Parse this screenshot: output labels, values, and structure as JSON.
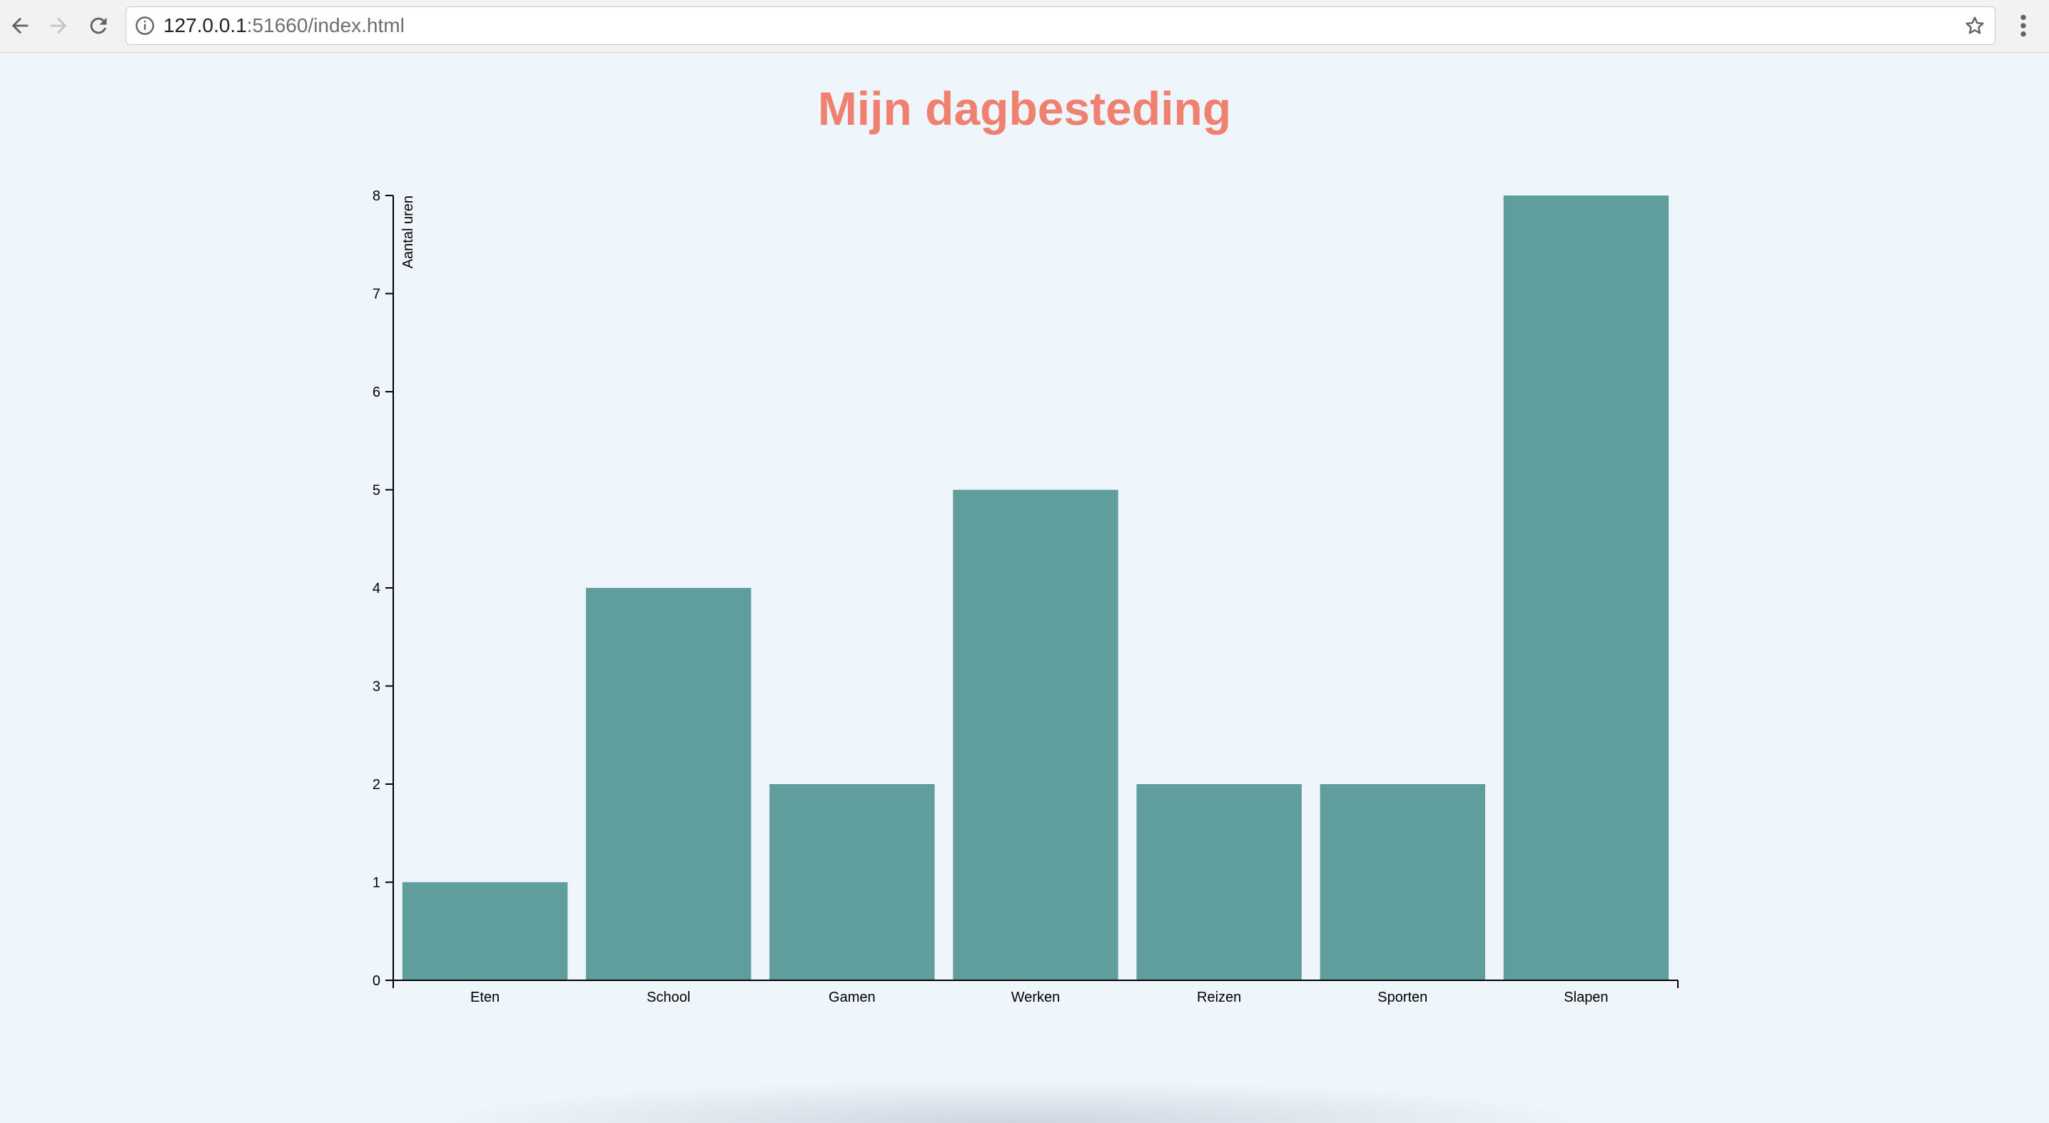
{
  "browser": {
    "url_host": "127.0.0.1",
    "url_rest": ":51660/index.html"
  },
  "page": {
    "title": "Mijn dagbesteding"
  },
  "colors": {
    "bar": "#609e9e",
    "title": "#f08070",
    "background": "#eef6fc"
  },
  "chart_data": {
    "type": "bar",
    "categories": [
      "Eten",
      "School",
      "Gamen",
      "Werken",
      "Reizen",
      "Sporten",
      "Slapen"
    ],
    "values": [
      1,
      4,
      2,
      5,
      2,
      2,
      8
    ],
    "title": "Mijn dagbesteding",
    "xlabel": "",
    "ylabel": "Aantal uren",
    "ylim": [
      0,
      8
    ],
    "yticks": [
      0,
      1,
      2,
      3,
      4,
      5,
      6,
      7,
      8
    ],
    "grid": false,
    "legend": "none"
  }
}
